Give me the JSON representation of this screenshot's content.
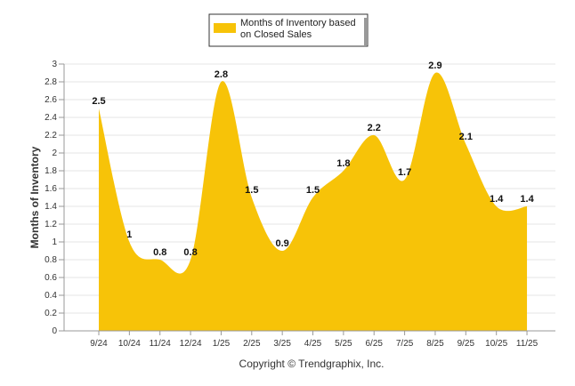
{
  "chart_data": {
    "type": "area",
    "categories": [
      "9/24",
      "10/24",
      "11/24",
      "12/24",
      "1/25",
      "2/25",
      "3/25",
      "4/25",
      "5/25",
      "6/25",
      "7/25",
      "8/25",
      "9/25",
      "10/25",
      "11/25"
    ],
    "series": [
      {
        "name": "Months of Inventory based on Closed Sales",
        "values": [
          2.5,
          1,
          0.8,
          0.8,
          2.8,
          1.5,
          0.9,
          1.5,
          1.8,
          2.2,
          1.7,
          2.9,
          2.1,
          1.4,
          1.4
        ],
        "labels": [
          "2.5",
          "1",
          "0.8",
          "0.8",
          "2.8",
          "1.5",
          "0.9",
          "1.5",
          "1.8",
          "2.2",
          "1.7",
          "2.9",
          "2.1",
          "1.4",
          "1.4"
        ],
        "color": "#F7C308"
      }
    ],
    "legend": {
      "line1": "Months of Inventory based",
      "line2": "on Closed Sales",
      "position": "top-center"
    },
    "ylabel": "Months of Inventory",
    "ylim": [
      0,
      3
    ],
    "yticks": [
      "0",
      "0.2",
      "0.4",
      "0.6",
      "0.8",
      "1",
      "1.2",
      "1.4",
      "1.6",
      "1.8",
      "2",
      "2.2",
      "2.4",
      "2.6",
      "2.8",
      "3"
    ],
    "grid": true
  },
  "footer": {
    "copyright": "Copyright © Trendgraphix, Inc."
  }
}
